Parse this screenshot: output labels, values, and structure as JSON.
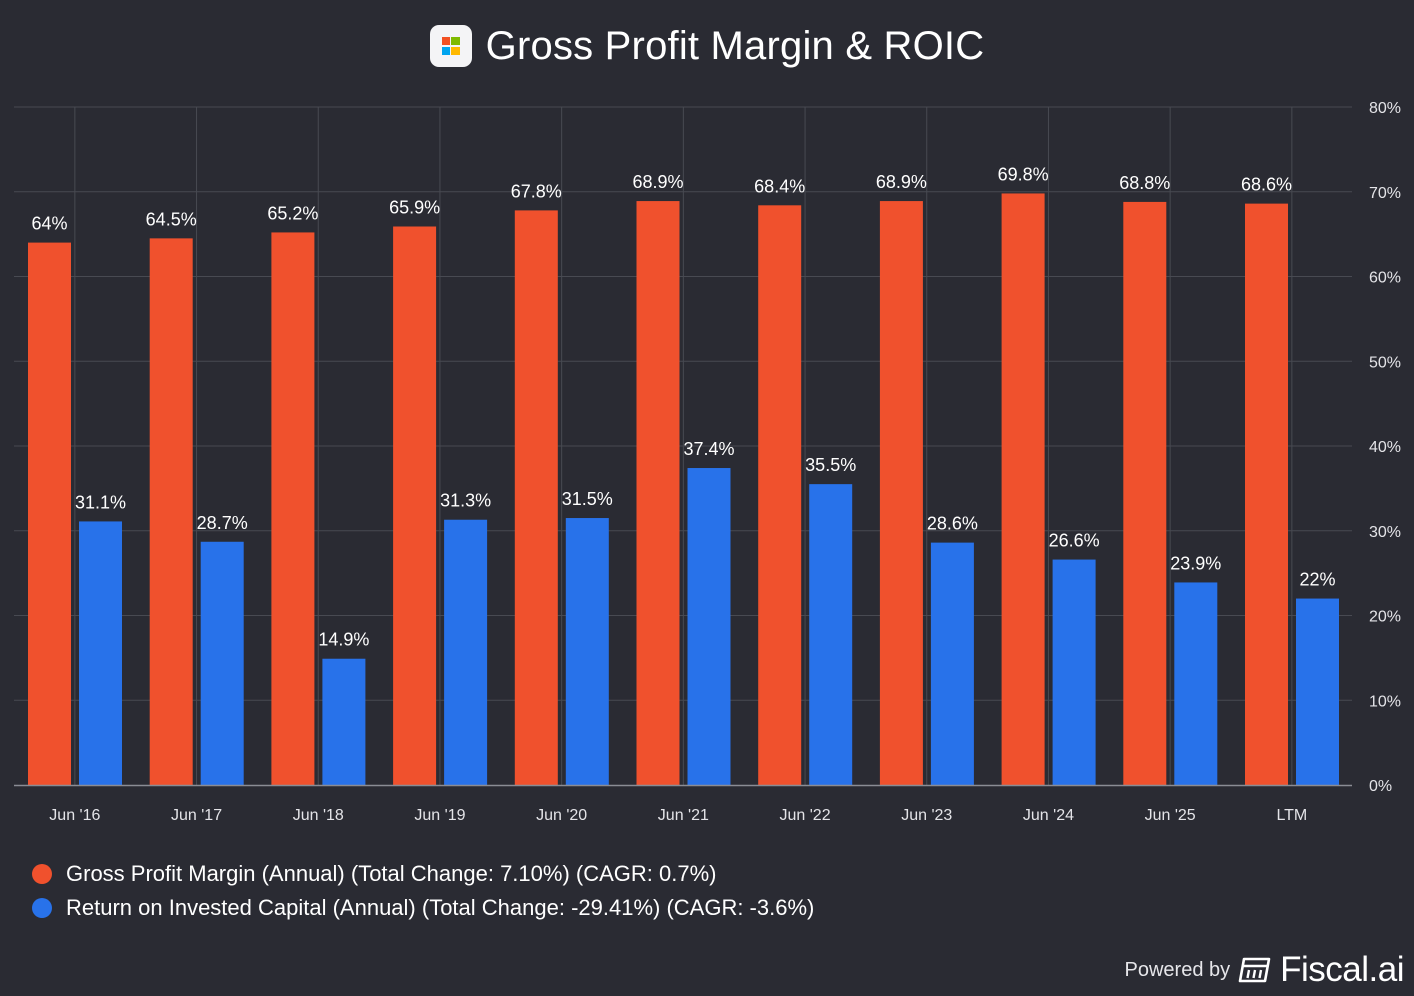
{
  "title": "Gross Profit Margin & ROIC",
  "logo": {
    "name": "microsoft-logo",
    "colors": [
      "#f25022",
      "#7fba00",
      "#00a4ef",
      "#ffb900"
    ]
  },
  "colors": {
    "background": "#2a2b33",
    "gridline": "#484a52",
    "axis_text": "#e4e4e8",
    "gross_profit": "#f0512d",
    "roic": "#2872ea"
  },
  "chart_data": {
    "type": "bar",
    "categories": [
      "Jun '16",
      "Jun '17",
      "Jun '18",
      "Jun '19",
      "Jun '20",
      "Jun '21",
      "Jun '22",
      "Jun '23",
      "Jun '24",
      "Jun '25",
      "LTM"
    ],
    "series": [
      {
        "name": "Gross Profit Margin (Annual)",
        "values": [
          64,
          64.5,
          65.2,
          65.9,
          67.8,
          68.9,
          68.4,
          68.9,
          69.8,
          68.8,
          68.6
        ],
        "labels": [
          "64%",
          "64.5%",
          "65.2%",
          "65.9%",
          "67.8%",
          "68.9%",
          "68.4%",
          "68.9%",
          "69.8%",
          "68.8%",
          "68.6%"
        ],
        "color": "#f0512d"
      },
      {
        "name": "Return on Invested Capital (Annual)",
        "values": [
          31.1,
          28.7,
          14.9,
          31.3,
          31.5,
          37.4,
          35.5,
          28.6,
          26.6,
          23.9,
          22
        ],
        "labels": [
          "31.1%",
          "28.7%",
          "14.9%",
          "31.3%",
          "31.5%",
          "37.4%",
          "35.5%",
          "28.6%",
          "26.6%",
          "23.9%",
          "22%"
        ],
        "color": "#2872ea"
      }
    ],
    "y_ticks": [
      0,
      10,
      20,
      30,
      40,
      50,
      60,
      70,
      80
    ],
    "y_tick_labels": [
      "0%",
      "10%",
      "20%",
      "30%",
      "40%",
      "50%",
      "60%",
      "70%",
      "80%"
    ],
    "ylim": [
      0,
      80
    ],
    "y_axis_side": "right",
    "grid": true,
    "legend_position": "bottom-left"
  },
  "legend": [
    {
      "label": "Gross Profit Margin (Annual) (Total Change: 7.10%) (CAGR: 0.7%)",
      "color": "#f0512d"
    },
    {
      "label": "Return on Invested Capital (Annual) (Total Change: -29.41%) (CAGR: -3.6%)",
      "color": "#2872ea"
    }
  ],
  "footer": {
    "powered_by": "Powered by",
    "brand": "Fiscal.ai",
    "icon": "fiscal-ai-logo-icon"
  }
}
